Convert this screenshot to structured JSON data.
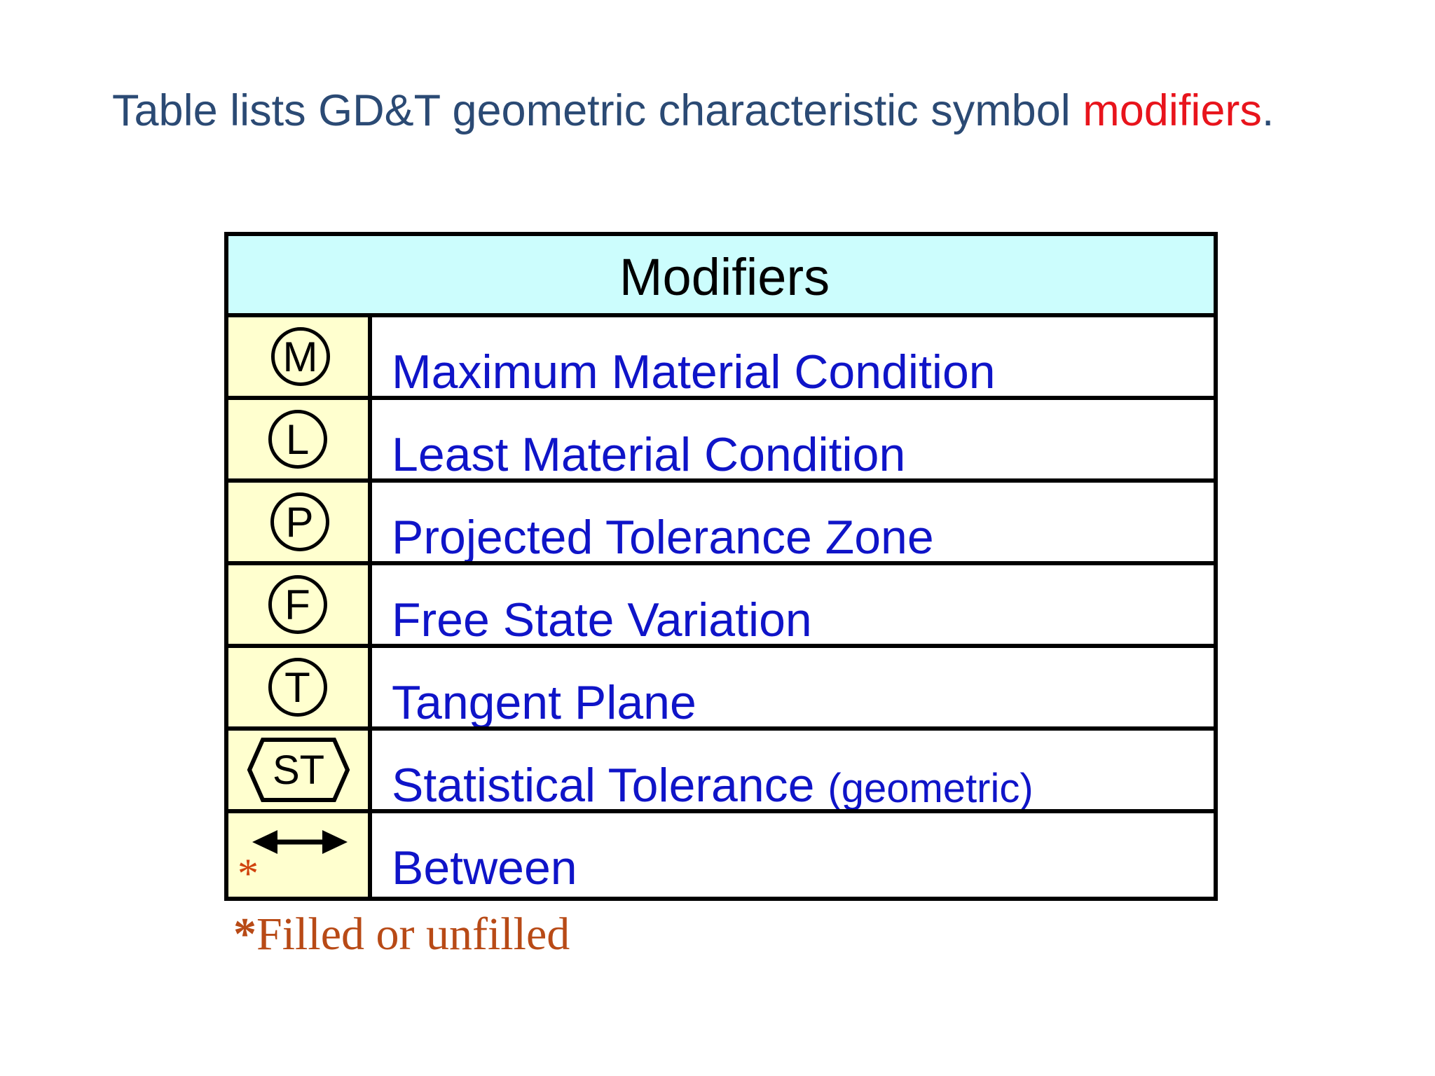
{
  "slide": {
    "title_main": "Table lists GD&T geometric characteristic symbol ",
    "title_accent": "modifiers",
    "title_end": "."
  },
  "table": {
    "header": "Modifiers",
    "rows": [
      {
        "symbol": "M",
        "symbol_shape": "circle",
        "label": "Maximum Material Condition"
      },
      {
        "symbol": "L",
        "symbol_shape": "circle",
        "label": "Least Material Condition"
      },
      {
        "symbol": "P",
        "symbol_shape": "circle",
        "label": "Projected Tolerance Zone"
      },
      {
        "symbol": "F",
        "symbol_shape": "circle",
        "label": "Free State Variation"
      },
      {
        "symbol": "T",
        "symbol_shape": "circle",
        "label": "Tangent Plane"
      },
      {
        "symbol": "ST",
        "symbol_shape": "hexagon",
        "label": "Statistical Tolerance",
        "label_suffix": "(geometric)"
      },
      {
        "symbol": "",
        "symbol_shape": "double-arrow",
        "label": "Between",
        "marker": "*"
      }
    ]
  },
  "footnote": {
    "marker": "*",
    "text": "Filled or unfilled"
  },
  "colors": {
    "title": "#2b4a74",
    "accent": "#e8141c",
    "label": "#0f14c8",
    "header_bg": "#ccfdfd",
    "symbol_bg": "#ffffcf",
    "footnote": "#b84a16"
  }
}
